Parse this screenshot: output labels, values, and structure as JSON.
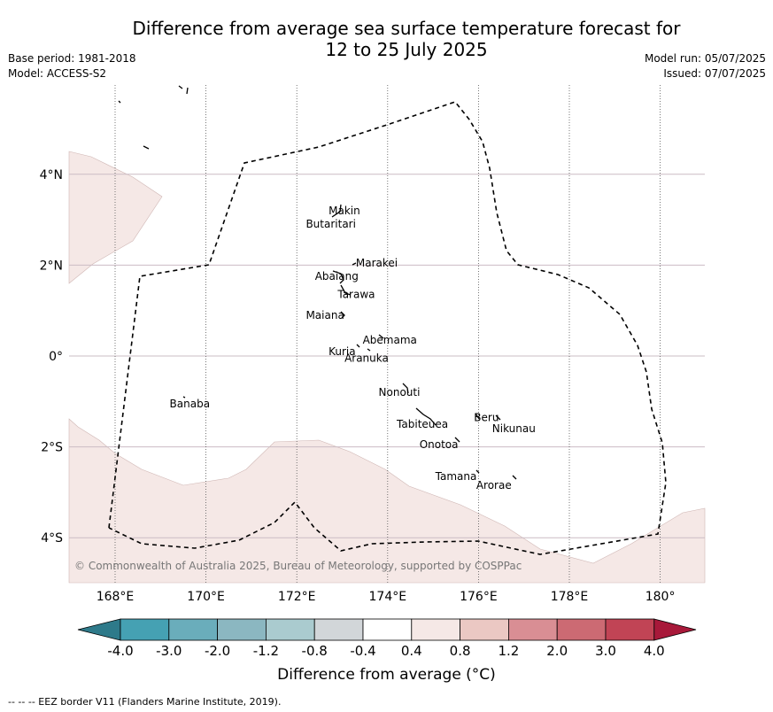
{
  "title_line1": "Difference from average sea surface temperature forecast for",
  "title_line2": "12 to 25 July 2025",
  "meta_left": [
    "Base period: 1981-2018",
    "Model: ACCESS-S2"
  ],
  "meta_right": [
    "Model run: 05/07/2025",
    "Issued: 07/07/2025"
  ],
  "map": {
    "lon_range": [
      167,
      181
    ],
    "lat_range": [
      -5,
      6
    ],
    "lon_ticks": [
      {
        "value": 168,
        "label": "168°E"
      },
      {
        "value": 170,
        "label": "170°E"
      },
      {
        "value": 172,
        "label": "172°E"
      },
      {
        "value": 174,
        "label": "174°E"
      },
      {
        "value": 176,
        "label": "176°E"
      },
      {
        "value": 178,
        "label": "178°E"
      },
      {
        "value": 180,
        "label": "180°"
      }
    ],
    "lat_ticks": [
      {
        "value": 4,
        "label": "4°N"
      },
      {
        "value": 2,
        "label": "2°N"
      },
      {
        "value": 0,
        "label": "0°"
      },
      {
        "value": -2,
        "label": "2°S"
      },
      {
        "value": -4,
        "label": "4°S"
      }
    ],
    "places": [
      {
        "name": "Makin",
        "lon": 172.7,
        "lat": 3.2
      },
      {
        "name": "Butaritari",
        "lon": 172.2,
        "lat": 2.9
      },
      {
        "name": "Marakei",
        "lon": 173.3,
        "lat": 2.05
      },
      {
        "name": "Abaiang",
        "lon": 172.4,
        "lat": 1.75
      },
      {
        "name": "Tarawa",
        "lon": 172.9,
        "lat": 1.35
      },
      {
        "name": "Maiana",
        "lon": 172.2,
        "lat": 0.9
      },
      {
        "name": "Abemama",
        "lon": 173.45,
        "lat": 0.35
      },
      {
        "name": "Kuria",
        "lon": 172.7,
        "lat": 0.1
      },
      {
        "name": "Aranuka",
        "lon": 173.05,
        "lat": -0.05
      },
      {
        "name": "Nonouti",
        "lon": 173.8,
        "lat": -0.8
      },
      {
        "name": "Banaba",
        "lon": 169.2,
        "lat": -1.05
      },
      {
        "name": "Beru",
        "lon": 175.9,
        "lat": -1.35
      },
      {
        "name": "Nikunau",
        "lon": 176.3,
        "lat": -1.6
      },
      {
        "name": "Tabiteuea",
        "lon": 174.2,
        "lat": -1.5
      },
      {
        "name": "Onotoa",
        "lon": 174.7,
        "lat": -1.95
      },
      {
        "name": "Tamana",
        "lon": 175.05,
        "lat": -2.65
      },
      {
        "name": "Arorae",
        "lon": 175.95,
        "lat": -2.85
      }
    ]
  },
  "copyright": "© Commonwealth of Australia 2025, Bureau of Meteorology, supported by COSPPac",
  "colorbar": {
    "colors": [
      "#2e7a8a",
      "#45a1b3",
      "#6aadbb",
      "#8bb7c1",
      "#aacbcf",
      "#d2d6d9",
      "#ffffff",
      "#f5e8e6",
      "#ebc8c3",
      "#d98e94",
      "#cc6a73",
      "#c14455",
      "#a8193a"
    ],
    "labels": [
      "-4.0",
      "-3.0",
      "-2.0",
      "-1.2",
      "-0.8",
      "-0.4",
      "0.4",
      "0.8",
      "1.2",
      "2.0",
      "3.0",
      "4.0"
    ],
    "title": "Difference from average (°C)"
  },
  "footnote": "-- -- -- EEZ border V11 (Flanders Marine Institute, 2019)."
}
